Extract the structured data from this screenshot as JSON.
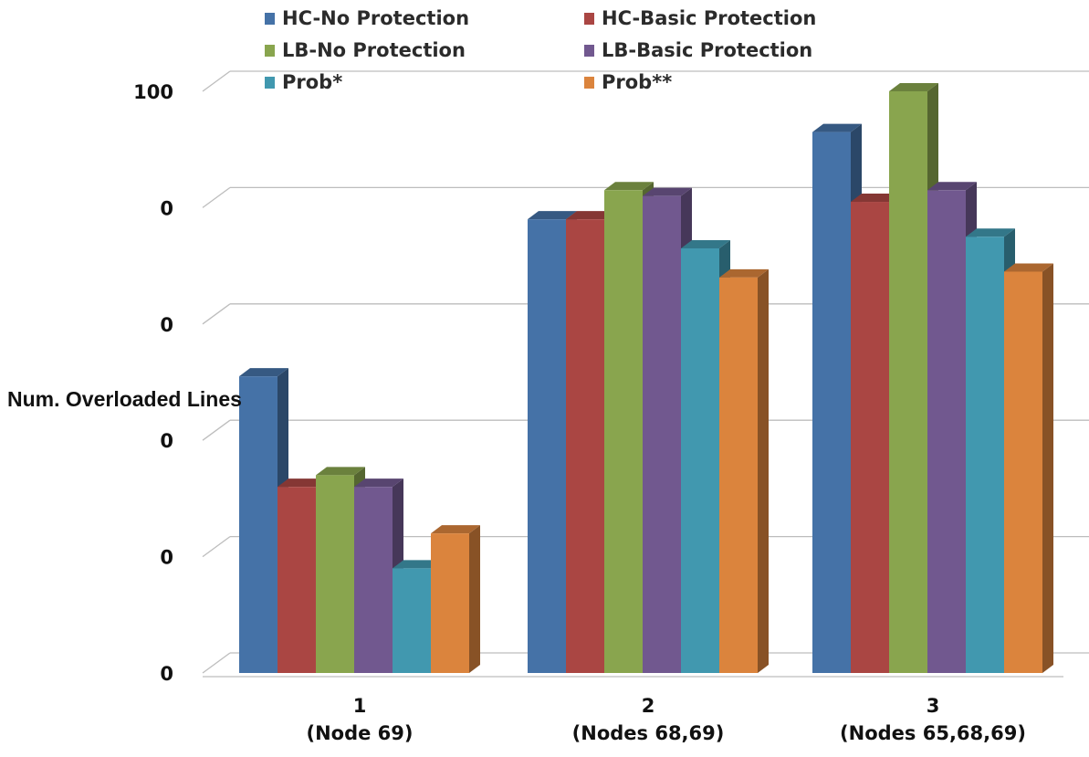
{
  "chart_data": {
    "type": "bar",
    "title": "",
    "ylabel": "Num.  Overloaded Lines",
    "xlabel": "",
    "ylim": [
      0,
      100
    ],
    "y_tick_labels": [
      "0",
      "0",
      "0",
      "0",
      "0",
      "100"
    ],
    "categories": [
      "1\n(Node 69)",
      "2\n(Nodes 68,69)",
      "3\n(Nodes 65,68,69)"
    ],
    "category_lines": [
      [
        "1",
        "(Node 69)"
      ],
      [
        "2",
        "(Nodes 68,69)"
      ],
      [
        "3",
        "(Nodes 65,68,69)"
      ]
    ],
    "series": [
      {
        "name": "HC-No Protection",
        "values": [
          51,
          78,
          93
        ],
        "color": "#4572a7"
      },
      {
        "name": "HC-Basic Protection",
        "values": [
          32,
          78,
          81
        ],
        "color": "#aa4643"
      },
      {
        "name": "LB-No Protection",
        "values": [
          34,
          83,
          100
        ],
        "color": "#89a54e"
      },
      {
        "name": "LB-Basic Protection",
        "values": [
          32,
          82,
          83
        ],
        "color": "#71588f"
      },
      {
        "name": "Prob*",
        "values": [
          18,
          73,
          75
        ],
        "color": "#4198af"
      },
      {
        "name": "Prob**",
        "values": [
          24,
          68,
          69
        ],
        "color": "#db843d"
      }
    ],
    "grid": true,
    "legend_position": "top",
    "style": "3d-clustered"
  }
}
